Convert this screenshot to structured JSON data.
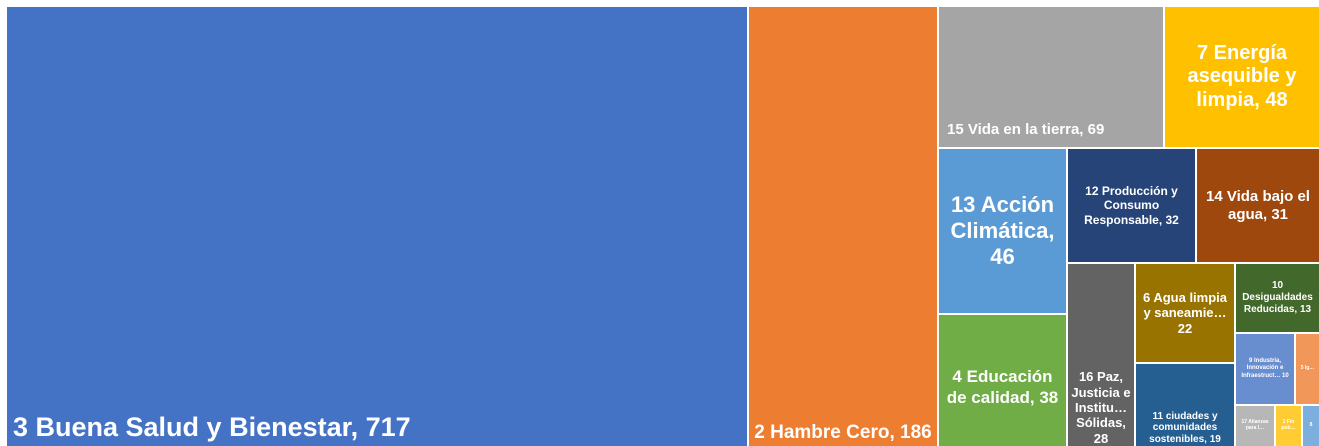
{
  "chart_data": {
    "type": "treemap",
    "items": [
      {
        "label": "3 Buena Salud y Bienestar, 717",
        "value": 717,
        "color": "#4472C4"
      },
      {
        "label": "2 Hambre Cero, 186",
        "value": 186,
        "color": "#ED7D31"
      },
      {
        "label": "15 Vida en la tierra, 69",
        "value": 69,
        "color": "#A5A5A5"
      },
      {
        "label": "7 Energía asequible y limpia, 48",
        "value": 48,
        "color": "#FFC000"
      },
      {
        "label": "13 Acción Climática, 46",
        "value": 46,
        "color": "#5B9BD5"
      },
      {
        "label": "4 Educación de calidad, 38",
        "value": 38,
        "color": "#70AD47"
      },
      {
        "label": "12 Producción y Consumo Responsable, 32",
        "value": 32,
        "color": "#264478"
      },
      {
        "label": "14 Vida bajo el agua, 31",
        "value": 31,
        "color": "#9E480E"
      },
      {
        "label": "16 Paz, Justicia e Institu… Sólidas, 28",
        "value": 28,
        "color": "#636363"
      },
      {
        "label": "6 Agua limpia y saneamie… 22",
        "value": 22,
        "color": "#997300"
      },
      {
        "label": "11 ciudades y comunidades sostenibles, 19",
        "value": 19,
        "color": "#255E91"
      },
      {
        "label": "10 Desigualdades Reducidas, 13",
        "value": 13,
        "color": "#43682B"
      },
      {
        "label": "9 Industria, Innovación e Infraestruct… 10",
        "value": 10,
        "color": "#698ED0"
      },
      {
        "label": "17 Alianzas para l…",
        "value": 5,
        "color": "#B7B7B7"
      },
      {
        "label": "1 Fin pob…",
        "value": 4,
        "color": "#FFCD33"
      },
      {
        "label": "5 Ig…",
        "value": 3,
        "color": "#F1975A"
      },
      {
        "label": "8",
        "value": 2,
        "color": "#7CAFDD"
      }
    ]
  }
}
